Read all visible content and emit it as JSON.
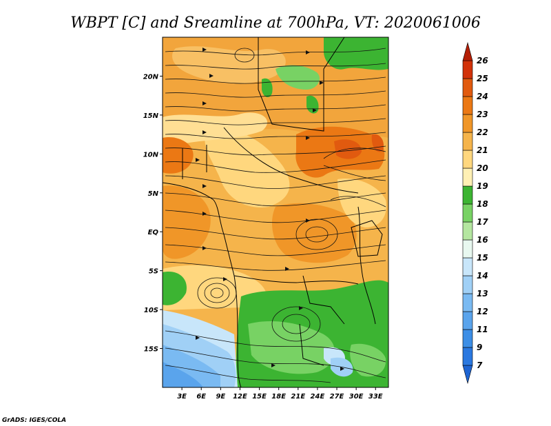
{
  "title": "WBPT [C] and Sreamline at 700hPa, VT: 2020061006",
  "credit": "GrADS: IGES/COLA",
  "map": {
    "lon_range": [
      0,
      35
    ],
    "lat_range": [
      -20,
      25
    ],
    "x_ticks": [
      {
        "value": 3,
        "label": "3E"
      },
      {
        "value": 6,
        "label": "6E"
      },
      {
        "value": 9,
        "label": "9E"
      },
      {
        "value": 12,
        "label": "12E"
      },
      {
        "value": 15,
        "label": "15E"
      },
      {
        "value": 18,
        "label": "18E"
      },
      {
        "value": 21,
        "label": "21E"
      },
      {
        "value": 24,
        "label": "24E"
      },
      {
        "value": 27,
        "label": "27E"
      },
      {
        "value": 30,
        "label": "30E"
      },
      {
        "value": 33,
        "label": "33E"
      }
    ],
    "y_ticks": [
      {
        "value": 20,
        "label": "20N"
      },
      {
        "value": 15,
        "label": "15N"
      },
      {
        "value": 10,
        "label": "10N"
      },
      {
        "value": 5,
        "label": "5N"
      },
      {
        "value": 0,
        "label": "EQ"
      },
      {
        "value": -5,
        "label": "5S"
      },
      {
        "value": -10,
        "label": "10S"
      },
      {
        "value": -15,
        "label": "15S"
      }
    ]
  },
  "colorbar": {
    "orientation": "vertical",
    "placement": "right",
    "labels": [
      "7",
      "9",
      "11",
      "12",
      "13",
      "14",
      "15",
      "16",
      "17",
      "18",
      "19",
      "20",
      "21",
      "22",
      "23",
      "24",
      "25",
      "26"
    ],
    "colors": [
      "#1e64d2",
      "#2a78e0",
      "#3c8ee6",
      "#5aa4ec",
      "#7abaf2",
      "#a0d0f6",
      "#c8e6fa",
      "#e8f8f0",
      "#b4e6a0",
      "#78d264",
      "#3cb432",
      "#fff0b4",
      "#ffd77e",
      "#f5b44b",
      "#f09628",
      "#eb7814",
      "#e15a0f",
      "#d2320a",
      "#b41e05"
    ]
  }
}
